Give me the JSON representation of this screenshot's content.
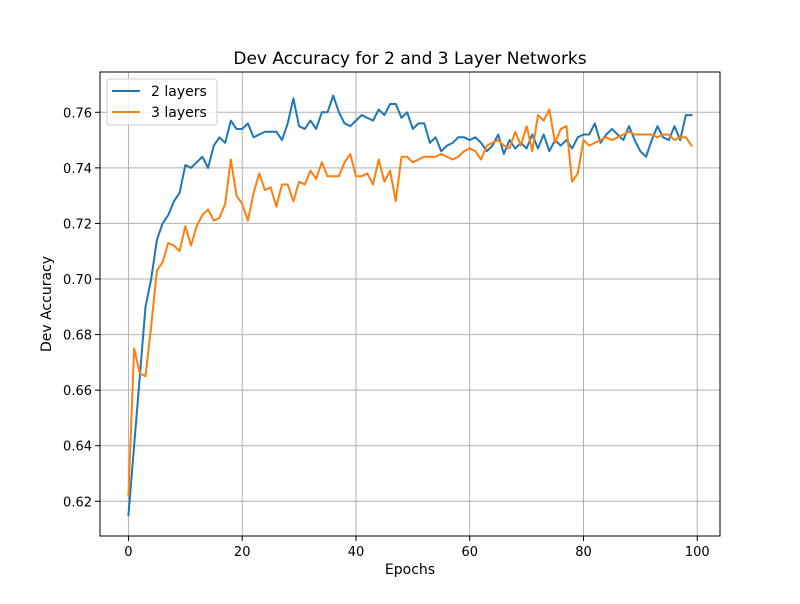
{
  "chart_data": {
    "type": "line",
    "title": "Dev Accuracy for 2 and 3 Layer Networks",
    "xlabel": "Epochs",
    "ylabel": "Dev Accuracy",
    "xlim": [
      -5,
      104
    ],
    "ylim": [
      0.6075,
      0.7745
    ],
    "xticks": [
      0,
      20,
      40,
      60,
      80,
      100
    ],
    "yticks": [
      0.62,
      0.64,
      0.66,
      0.68,
      0.7,
      0.72,
      0.74,
      0.76
    ],
    "ytick_labels": [
      "0.62",
      "0.64",
      "0.66",
      "0.68",
      "0.70",
      "0.72",
      "0.74",
      "0.76"
    ],
    "grid": true,
    "legend_position": "top-left",
    "series": [
      {
        "name": "2 layers",
        "color": "#1f77b4",
        "x": [
          0,
          1,
          2,
          3,
          4,
          5,
          6,
          7,
          8,
          9,
          10,
          11,
          12,
          13,
          14,
          15,
          16,
          17,
          18,
          19,
          20,
          21,
          22,
          23,
          24,
          25,
          26,
          27,
          28,
          29,
          30,
          31,
          32,
          33,
          34,
          35,
          36,
          37,
          38,
          39,
          40,
          41,
          42,
          43,
          44,
          45,
          46,
          47,
          48,
          49,
          50,
          51,
          52,
          53,
          54,
          55,
          56,
          57,
          58,
          59,
          60,
          61,
          62,
          63,
          64,
          65,
          66,
          67,
          68,
          69,
          70,
          71,
          72,
          73,
          74,
          75,
          76,
          77,
          78,
          79,
          80,
          81,
          82,
          83,
          84,
          85,
          86,
          87,
          88,
          89,
          90,
          91,
          92,
          93,
          94,
          95,
          96,
          97,
          98,
          99
        ],
        "values": [
          0.615,
          0.64,
          0.665,
          0.69,
          0.7,
          0.714,
          0.72,
          0.723,
          0.728,
          0.731,
          0.741,
          0.74,
          0.742,
          0.744,
          0.74,
          0.748,
          0.751,
          0.749,
          0.757,
          0.754,
          0.754,
          0.756,
          0.751,
          0.752,
          0.753,
          0.753,
          0.753,
          0.75,
          0.756,
          0.765,
          0.755,
          0.754,
          0.757,
          0.754,
          0.76,
          0.76,
          0.766,
          0.76,
          0.756,
          0.755,
          0.757,
          0.759,
          0.758,
          0.757,
          0.761,
          0.759,
          0.763,
          0.763,
          0.758,
          0.76,
          0.754,
          0.756,
          0.756,
          0.749,
          0.751,
          0.746,
          0.748,
          0.749,
          0.751,
          0.751,
          0.75,
          0.751,
          0.749,
          0.746,
          0.748,
          0.752,
          0.745,
          0.75,
          0.747,
          0.749,
          0.747,
          0.752,
          0.747,
          0.752,
          0.746,
          0.75,
          0.748,
          0.75,
          0.747,
          0.751,
          0.752,
          0.752,
          0.756,
          0.749,
          0.752,
          0.754,
          0.752,
          0.75,
          0.755,
          0.75,
          0.746,
          0.744,
          0.75,
          0.755,
          0.751,
          0.75,
          0.755,
          0.75,
          0.759,
          0.759
        ]
      },
      {
        "name": "3 layers",
        "color": "#ff7f0e",
        "x": [
          0,
          1,
          2,
          3,
          4,
          5,
          6,
          7,
          8,
          9,
          10,
          11,
          12,
          13,
          14,
          15,
          16,
          17,
          18,
          19,
          20,
          21,
          22,
          23,
          24,
          25,
          26,
          27,
          28,
          29,
          30,
          31,
          32,
          33,
          34,
          35,
          36,
          37,
          38,
          39,
          40,
          41,
          42,
          43,
          44,
          45,
          46,
          47,
          48,
          49,
          50,
          51,
          52,
          53,
          54,
          55,
          56,
          57,
          58,
          59,
          60,
          61,
          62,
          63,
          64,
          65,
          66,
          67,
          68,
          69,
          70,
          71,
          72,
          73,
          74,
          75,
          76,
          77,
          78,
          79,
          80,
          81,
          82,
          83,
          84,
          85,
          86,
          87,
          88,
          89,
          90,
          91,
          92,
          93,
          94,
          95,
          96,
          97,
          98,
          99
        ],
        "values": [
          0.622,
          0.675,
          0.666,
          0.665,
          0.683,
          0.703,
          0.706,
          0.713,
          0.712,
          0.71,
          0.719,
          0.712,
          0.719,
          0.723,
          0.725,
          0.721,
          0.722,
          0.727,
          0.743,
          0.73,
          0.727,
          0.721,
          0.731,
          0.738,
          0.732,
          0.733,
          0.726,
          0.734,
          0.734,
          0.728,
          0.735,
          0.734,
          0.739,
          0.736,
          0.742,
          0.737,
          0.737,
          0.737,
          0.742,
          0.745,
          0.737,
          0.737,
          0.738,
          0.734,
          0.743,
          0.735,
          0.739,
          0.728,
          0.744,
          0.744,
          0.742,
          0.743,
          0.744,
          0.744,
          0.744,
          0.745,
          0.744,
          0.743,
          0.744,
          0.746,
          0.747,
          0.746,
          0.743,
          0.748,
          0.749,
          0.75,
          0.748,
          0.747,
          0.753,
          0.748,
          0.755,
          0.746,
          0.759,
          0.757,
          0.761,
          0.749,
          0.754,
          0.755,
          0.735,
          0.738,
          0.75,
          0.748,
          0.749,
          0.75,
          0.751,
          0.75,
          0.751,
          0.752,
          0.753,
          0.752,
          0.752,
          0.752,
          0.752,
          0.751,
          0.752,
          0.752,
          0.75,
          0.751,
          0.751,
          0.748
        ]
      }
    ]
  }
}
